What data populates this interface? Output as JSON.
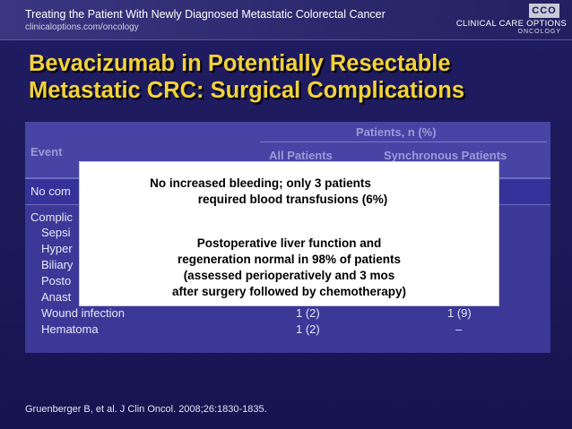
{
  "header": {
    "course_title": "Treating the Patient With Newly Diagnosed Metastatic Colorectal Cancer",
    "url": "clinicaloptions.com/oncology",
    "logo_badge": "CCO",
    "logo_name": "CLINICAL CARE OPTIONS",
    "logo_sub": "ONCOLOGY"
  },
  "title": {
    "line1": "Bevacizumab in Potentially Resectable",
    "line2": "Metastatic CRC: Surgical Complications"
  },
  "table": {
    "header_group": "Patients, n (%)",
    "col_event": "Event",
    "col_all": "All Patients",
    "col_sync": "Synchronous Patients",
    "row_none_label": "No com",
    "complication_label": "Complic",
    "sub_rows": [
      {
        "label": "Sepsi",
        "all": "",
        "sync": ""
      },
      {
        "label": "Hyper",
        "all": "",
        "sync": ""
      },
      {
        "label": "Biliary",
        "all": "",
        "sync": ""
      },
      {
        "label": "Posto",
        "all": "",
        "sync": ""
      },
      {
        "label": "Anast",
        "all": "",
        "sync": ""
      },
      {
        "label": "Wound infection",
        "all": "1 (2)",
        "sync": "1 (9)"
      },
      {
        "label": "Hematoma",
        "all": "1 (2)",
        "sync": "–"
      }
    ]
  },
  "overlay": {
    "lines": [
      "No increased bleeding; only 3 patients",
      "required blood transfusions (6%)",
      "Postoperative liver function and",
      "regeneration normal in 98% of patients",
      "(assessed perioperatively and 3 mos",
      "after surgery followed by chemotherapy)"
    ]
  },
  "citation": "Gruenberger B, et al. J Clin Oncol. 2008;26:1830-1835."
}
